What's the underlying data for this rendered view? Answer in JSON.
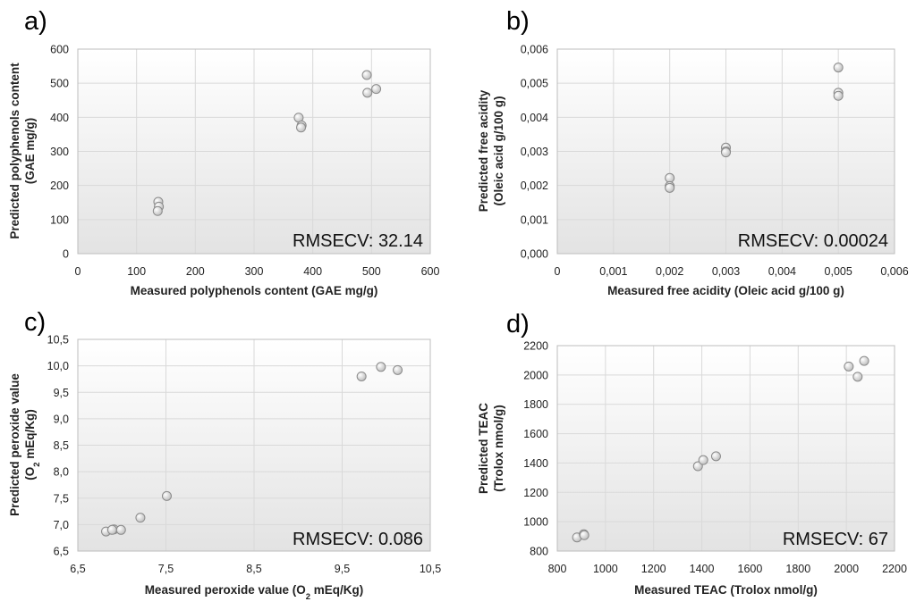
{
  "chart_data": [
    {
      "type": "scatter",
      "panel_label": "a)",
      "xlabel": "Measured polyphenols content (GAE mg/g)",
      "ylabel_lines": [
        "Predicted polyphenols content",
        "(GAE mg/g)"
      ],
      "annotation": "RMSECV: 32.14",
      "xlim": [
        0,
        600
      ],
      "ylim": [
        0,
        600
      ],
      "xticks": [
        "0",
        "100",
        "200",
        "300",
        "400",
        "500",
        "600"
      ],
      "yticks": [
        "0",
        "100",
        "200",
        "300",
        "400",
        "500",
        "600"
      ],
      "grid": true,
      "points": [
        {
          "x": 137,
          "y": 152
        },
        {
          "x": 138,
          "y": 138
        },
        {
          "x": 136,
          "y": 125
        },
        {
          "x": 376,
          "y": 399
        },
        {
          "x": 381,
          "y": 376
        },
        {
          "x": 380,
          "y": 370
        },
        {
          "x": 492,
          "y": 524
        },
        {
          "x": 493,
          "y": 472
        },
        {
          "x": 508,
          "y": 483
        }
      ]
    },
    {
      "type": "scatter",
      "panel_label": "b)",
      "xlabel": "Measured free acidity (Oleic acid g/100 g)",
      "ylabel_lines": [
        "Predicted free acidity",
        "(Oleic acid g/100 g)"
      ],
      "annotation": "RMSECV: 0.00024",
      "xlim": [
        0,
        0.006
      ],
      "ylim": [
        0,
        0.006
      ],
      "xticks": [
        "0",
        "0,001",
        "0,002",
        "0,003",
        "0,004",
        "0,005",
        "0,006"
      ],
      "yticks": [
        "0,000",
        "0,001",
        "0,002",
        "0,003",
        "0,004",
        "0,005",
        "0,006"
      ],
      "grid": true,
      "points": [
        {
          "x": 0.002,
          "y": 0.00222
        },
        {
          "x": 0.002,
          "y": 0.00198
        },
        {
          "x": 0.002,
          "y": 0.00193
        },
        {
          "x": 0.003,
          "y": 0.00311
        },
        {
          "x": 0.003,
          "y": 0.003
        },
        {
          "x": 0.003,
          "y": 0.00297
        },
        {
          "x": 0.005,
          "y": 0.00546
        },
        {
          "x": 0.005,
          "y": 0.00472
        },
        {
          "x": 0.005,
          "y": 0.00463
        }
      ]
    },
    {
      "type": "scatter",
      "panel_label": "c)",
      "xlabel_parts": [
        "Measured peroxide value (O",
        "2",
        " mEq/Kg)"
      ],
      "ylabel_line1": "Predicted peroxide value",
      "ylabel_parts": [
        "(O",
        "2",
        " mEq/Kg)"
      ],
      "annotation": "RMSECV: 0.086",
      "xlim": [
        6.5,
        10.5
      ],
      "ylim": [
        6.5,
        10.5
      ],
      "xticks": [
        "6,5",
        "7,5",
        "8,5",
        "9,5",
        "10,5"
      ],
      "yticks": [
        "6,5",
        "7,0",
        "7,5",
        "8,0",
        "8,5",
        "9,0",
        "9,5",
        "10,0",
        "10,5"
      ],
      "grid": true,
      "points": [
        {
          "x": 6.82,
          "y": 6.87
        },
        {
          "x": 6.91,
          "y": 6.91
        },
        {
          "x": 6.89,
          "y": 6.9
        },
        {
          "x": 6.99,
          "y": 6.9
        },
        {
          "x": 7.21,
          "y": 7.13
        },
        {
          "x": 7.51,
          "y": 7.54
        },
        {
          "x": 9.72,
          "y": 9.8
        },
        {
          "x": 9.94,
          "y": 9.98
        },
        {
          "x": 10.13,
          "y": 9.92
        }
      ]
    },
    {
      "type": "scatter",
      "panel_label": "d)",
      "xlabel": "Measured TEAC (Trolox nmol/g)",
      "ylabel_lines": [
        "Predicted TEAC",
        "(Trolox nmol/g)"
      ],
      "annotation": "RMSECV: 67",
      "xlim": [
        800,
        2200
      ],
      "ylim": [
        800,
        2200
      ],
      "xticks": [
        "800",
        "1000",
        "1200",
        "1400",
        "1600",
        "1800",
        "2000",
        "2200"
      ],
      "yticks": [
        "800",
        "1000",
        "1200",
        "1400",
        "1600",
        "1800",
        "2000",
        "2200"
      ],
      "grid": true,
      "points": [
        {
          "x": 882,
          "y": 893
        },
        {
          "x": 910,
          "y": 915
        },
        {
          "x": 912,
          "y": 908
        },
        {
          "x": 1384,
          "y": 1378
        },
        {
          "x": 1406,
          "y": 1420
        },
        {
          "x": 1459,
          "y": 1446
        },
        {
          "x": 2010,
          "y": 2058
        },
        {
          "x": 2047,
          "y": 1988
        },
        {
          "x": 2074,
          "y": 2096
        }
      ]
    }
  ]
}
